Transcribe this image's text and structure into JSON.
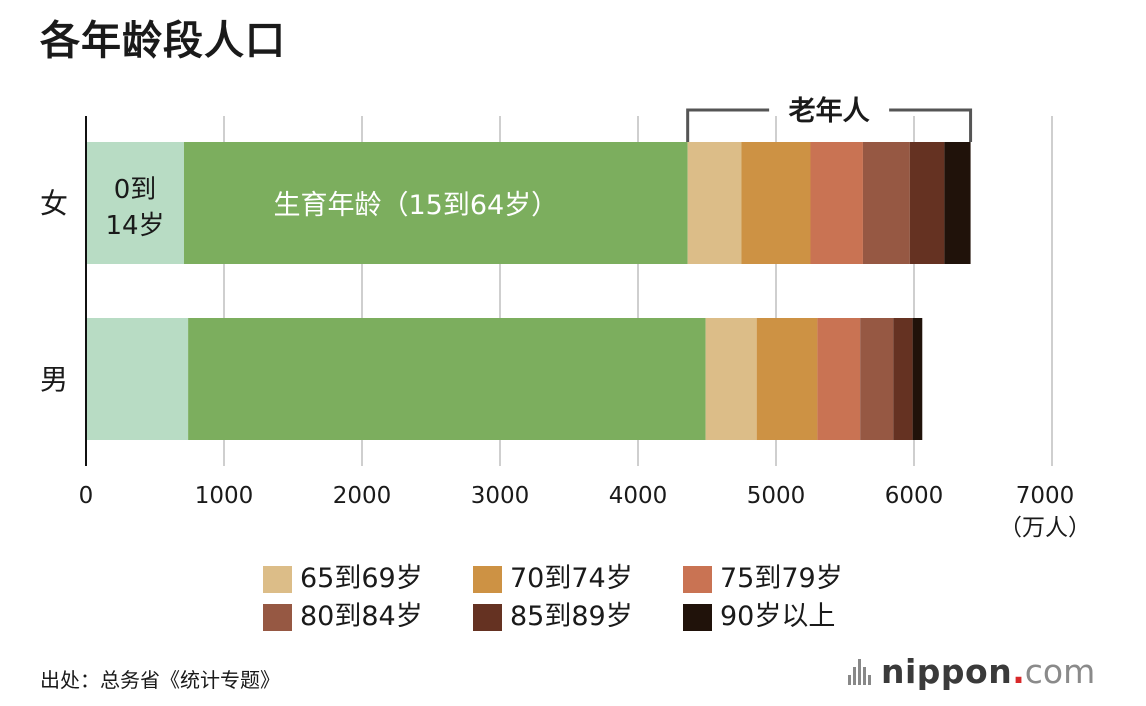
{
  "title": "各年龄段人口",
  "source": "出处：总务省《统计专题》",
  "logo": {
    "name": "nippon",
    "dot": ".",
    "tld": "com"
  },
  "chart_data": {
    "type": "bar",
    "orientation": "horizontal",
    "stacked": true,
    "categories": [
      "女",
      "男"
    ],
    "series": [
      {
        "name": "0到14岁",
        "color": "#b8dcc4",
        "values": [
          710,
          740
        ]
      },
      {
        "name": "生育年龄（15到64岁）",
        "color": "#7cae5e",
        "values": [
          3650,
          3750
        ]
      },
      {
        "name": "65到69岁",
        "color": "#dcbd88",
        "values": [
          390,
          370
        ]
      },
      {
        "name": "70到74岁",
        "color": "#cd9244",
        "values": [
          500,
          440
        ]
      },
      {
        "name": "75到79岁",
        "color": "#c97353",
        "values": [
          380,
          310
        ]
      },
      {
        "name": "80到84岁",
        "color": "#965843",
        "values": [
          340,
          240
        ]
      },
      {
        "name": "85到89岁",
        "color": "#653222",
        "values": [
          250,
          140
        ]
      },
      {
        "name": "90岁以上",
        "color": "#20120a",
        "values": [
          190,
          70
        ]
      }
    ],
    "inline_labels": {
      "young_line1": "0到",
      "young_line2": "14岁",
      "working": "生育年龄（15到64岁）"
    },
    "bracket_label": "老年人",
    "xticks": [
      0,
      1000,
      2000,
      3000,
      4000,
      5000,
      6000,
      7000
    ],
    "xticks_text": [
      "0",
      "1000",
      "2000",
      "3000",
      "4000",
      "5000",
      "6000",
      "7000"
    ],
    "x_unit": "（万人）",
    "xlim": [
      0,
      7000
    ],
    "grid": true,
    "legend": [
      {
        "label": "65到69岁",
        "color": "#dcbd88"
      },
      {
        "label": "70到74岁",
        "color": "#cd9244"
      },
      {
        "label": "75到79岁",
        "color": "#c97353"
      },
      {
        "label": "80到84岁",
        "color": "#965843"
      },
      {
        "label": "85到89岁",
        "color": "#653222"
      },
      {
        "label": "90岁以上",
        "color": "#20120a"
      }
    ]
  }
}
